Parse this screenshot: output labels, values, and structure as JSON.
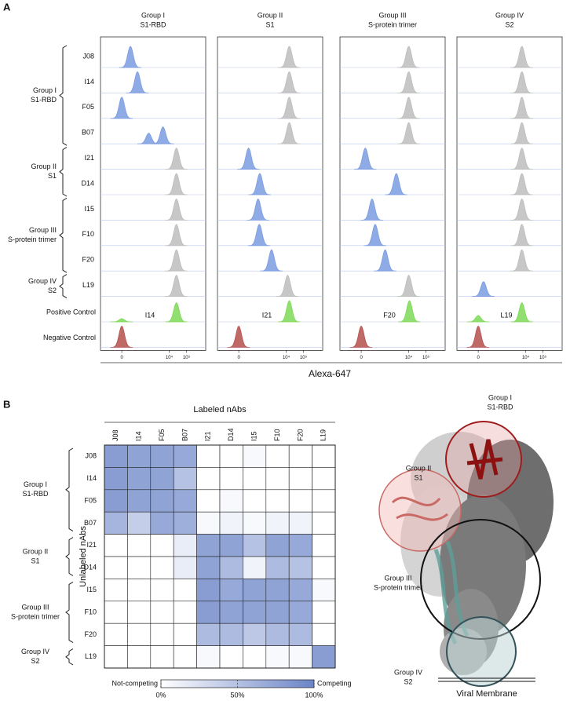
{
  "panel_labels": [
    "A",
    "B"
  ],
  "chart_data": [
    {
      "type": "density",
      "xlabel": "Alexa-647",
      "xscale": "biexponential",
      "cofactor": 35,
      "xlim": [
        -300,
        1300000
      ],
      "xticks": [
        0,
        {
          "value": 10000,
          "label": "10⁴"
        },
        {
          "value": 100000,
          "label": "10⁵"
        }
      ],
      "row_groups": [
        {
          "label": [
            "Group I",
            "S1-RBD"
          ],
          "rows": [
            "J08",
            "I14",
            "F05",
            "B07"
          ]
        },
        {
          "label": [
            "Group II",
            "S1"
          ],
          "rows": [
            "I21",
            "D14"
          ]
        },
        {
          "label": [
            "Group III",
            "S-protein trimer"
          ],
          "rows": [
            "I15",
            "F10",
            "F20"
          ]
        },
        {
          "label": [
            "Group IV",
            "S2"
          ],
          "rows": [
            "L19"
          ]
        }
      ],
      "controls": [
        "Positive Control",
        "Negative Control"
      ],
      "columns": [
        {
          "title": [
            "Group I",
            "S1-RBD"
          ],
          "positive_label": "I14",
          "cells": [
            {
              "peaks": [
                50
              ],
              "color": "#7b9ce0"
            },
            {
              "peaks": [
                140
              ],
              "color": "#7b9ce0"
            },
            {
              "peaks": [
                0
              ],
              "color": "#7b9ce0"
            },
            {
              "peaks": [
                640,
                4300
              ],
              "heights": [
                0.5,
                0.8
              ],
              "color": "#7b9ce0"
            },
            {
              "peaks": [
                26000
              ],
              "color": "#bdbdbd"
            },
            {
              "peaks": [
                26000
              ],
              "color": "#bdbdbd"
            },
            {
              "peaks": [
                26000
              ],
              "color": "#bdbdbd"
            },
            {
              "peaks": [
                26000
              ],
              "color": "#bdbdbd"
            },
            {
              "peaks": [
                26000
              ],
              "color": "#bdbdbd"
            },
            {
              "peaks": [
                26000
              ],
              "color": "#bdbdbd"
            },
            {
              "peaks": [
                0,
                26000
              ],
              "heights": [
                0.15,
                0.9
              ],
              "color": "#7ed957"
            },
            {
              "peaks": [
                0
              ],
              "color": "#b5504c"
            }
          ]
        },
        {
          "title": [
            "Group II",
            "S1"
          ],
          "positive_label": "I21",
          "cells": [
            {
              "peaks": [
                15000
              ],
              "color": "#bdbdbd"
            },
            {
              "peaks": [
                15000
              ],
              "color": "#bdbdbd"
            },
            {
              "peaks": [
                15000
              ],
              "color": "#bdbdbd"
            },
            {
              "peaks": [
                15000
              ],
              "color": "#bdbdbd"
            },
            {
              "peaks": [
                60
              ],
              "color": "#7b9ce0"
            },
            {
              "peaks": [
                290
              ],
              "color": "#7b9ce0"
            },
            {
              "peaks": [
                230
              ],
              "color": "#7b9ce0"
            },
            {
              "peaks": [
                270
              ],
              "color": "#7b9ce0"
            },
            {
              "peaks": [
                1400
              ],
              "color": "#7b9ce0"
            },
            {
              "peaks": [
                12000
              ],
              "color": "#bdbdbd"
            },
            {
              "peaks": [
                15000
              ],
              "color": "#7ed957"
            },
            {
              "peaks": [
                0
              ],
              "color": "#b5504c"
            }
          ]
        },
        {
          "title": [
            "Group III",
            "S-protein trimer"
          ],
          "positive_label": "F20",
          "cells": [
            {
              "peaks": [
                10000
              ],
              "color": "#bdbdbd"
            },
            {
              "peaks": [
                10000
              ],
              "color": "#bdbdbd"
            },
            {
              "peaks": [
                10000
              ],
              "color": "#bdbdbd"
            },
            {
              "peaks": [
                10000
              ],
              "color": "#bdbdbd"
            },
            {
              "peaks": [
                20
              ],
              "color": "#7b9ce0"
            },
            {
              "peaks": [
                1900
              ],
              "color": "#7b9ce0"
            },
            {
              "peaks": [
                70
              ],
              "color": "#7b9ce0"
            },
            {
              "peaks": [
                110
              ],
              "color": "#7b9ce0"
            },
            {
              "peaks": [
                430
              ],
              "color": "#7b9ce0"
            },
            {
              "peaks": [
                10000
              ],
              "color": "#bdbdbd"
            },
            {
              "peaks": [
                11000
              ],
              "color": "#7ed957"
            },
            {
              "peaks": [
                0
              ],
              "color": "#b5504c"
            }
          ]
        },
        {
          "title": [
            "Group IV",
            "S2"
          ],
          "positive_label": "L19",
          "cells": [
            {
              "peaks": [
                6000
              ],
              "color": "#bdbdbd"
            },
            {
              "peaks": [
                6000
              ],
              "color": "#bdbdbd"
            },
            {
              "peaks": [
                6000
              ],
              "color": "#bdbdbd"
            },
            {
              "peaks": [
                6000
              ],
              "color": "#bdbdbd"
            },
            {
              "peaks": [
                6000
              ],
              "color": "#bdbdbd"
            },
            {
              "peaks": [
                6000
              ],
              "color": "#bdbdbd"
            },
            {
              "peaks": [
                6000
              ],
              "color": "#bdbdbd"
            },
            {
              "peaks": [
                6000
              ],
              "color": "#bdbdbd"
            },
            {
              "peaks": [
                6000
              ],
              "color": "#bdbdbd"
            },
            {
              "peaks": [
                27
              ],
              "heights": [
                0.7
              ],
              "color": "#7b9ce0"
            },
            {
              "peaks": [
                0,
                6000
              ],
              "heights": [
                0.3,
                0.9
              ],
              "color": "#7ed957"
            },
            {
              "peaks": [
                0
              ],
              "color": "#b5504c"
            }
          ]
        }
      ]
    },
    {
      "type": "heatmap",
      "title": "Labeled nAbs",
      "ylabel": "Unlabeled nAbs",
      "categories": [
        "J08",
        "I14",
        "F05",
        "B07",
        "I21",
        "D14",
        "I15",
        "F10",
        "F20",
        "L19"
      ],
      "row_groups": [
        {
          "label": [
            "Group I",
            "S1-RBD"
          ],
          "rows": [
            "J08",
            "I14",
            "F05",
            "B07"
          ]
        },
        {
          "label": [
            "Group II",
            "S1"
          ],
          "rows": [
            "I21",
            "D14"
          ]
        },
        {
          "label": [
            "Group III",
            "S-protein trimer"
          ],
          "rows": [
            "I15",
            "F10",
            "F20"
          ]
        },
        {
          "label": [
            "Group IV",
            "S2"
          ],
          "rows": [
            "L19"
          ]
        }
      ],
      "values": [
        [
          80,
          75,
          75,
          70,
          0,
          0,
          5,
          0,
          0,
          0
        ],
        [
          80,
          75,
          75,
          50,
          0,
          0,
          0,
          0,
          0,
          0
        ],
        [
          80,
          75,
          75,
          70,
          0,
          5,
          0,
          0,
          0,
          0
        ],
        [
          60,
          40,
          70,
          65,
          5,
          10,
          5,
          10,
          10,
          0
        ],
        [
          0,
          0,
          0,
          15,
          75,
          75,
          50,
          75,
          70,
          0
        ],
        [
          0,
          0,
          0,
          15,
          75,
          55,
          10,
          55,
          50,
          0
        ],
        [
          0,
          0,
          0,
          0,
          80,
          70,
          75,
          75,
          70,
          5
        ],
        [
          0,
          0,
          0,
          0,
          80,
          75,
          75,
          75,
          70,
          0
        ],
        [
          0,
          0,
          0,
          0,
          55,
          55,
          45,
          55,
          55,
          0
        ],
        [
          0,
          0,
          0,
          0,
          5,
          0,
          0,
          5,
          5,
          80
        ]
      ],
      "zlim": [
        0,
        100
      ],
      "colors": [
        "#ffffff",
        "#6b84c7"
      ],
      "colorbar_labels": [
        "Not-competing",
        "Competing"
      ],
      "cticks": [
        {
          "value": 0,
          "label": "0%"
        },
        {
          "value": 50,
          "label": "50%"
        },
        {
          "value": 100,
          "label": "100%"
        }
      ]
    }
  ],
  "structure": {
    "labels": [
      [
        "Group I",
        "S1-RBD"
      ],
      [
        "Group II",
        "S1"
      ],
      [
        "Group III",
        "S-protein trimer"
      ],
      [
        "Group IV",
        "S2"
      ]
    ],
    "membrane": "Viral Membrane"
  }
}
